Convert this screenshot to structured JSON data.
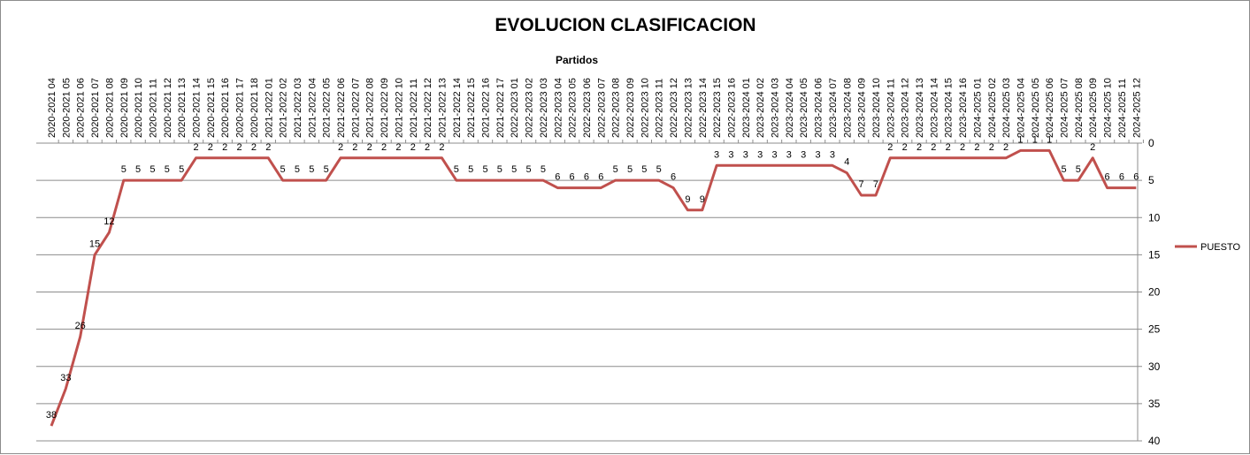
{
  "chart_data": {
    "type": "line",
    "title": "EVOLUCION CLASIFICACION",
    "xlabel": "Partidos",
    "ylabel": "",
    "ylim": [
      0,
      40
    ],
    "y_reversed": true,
    "y_ticks": [
      0,
      5,
      10,
      15,
      20,
      25,
      30,
      35,
      40
    ],
    "y_axis_position": "right",
    "x_axis_position": "top",
    "grid": true,
    "legend": "right",
    "line_color": "#c0504d",
    "categories": [
      "2020-2021 04",
      "2020-2021 05",
      "2020-2021 06",
      "2020-2021 07",
      "2020-2021 08",
      "2020-2021 09",
      "2020-2021 10",
      "2020-2021 11",
      "2020-2021 12",
      "2020-2021 13",
      "2020-2021 14",
      "2020-2021 15",
      "2020-2021 16",
      "2020-2021 17",
      "2020-2021 18",
      "2021-2022 01",
      "2021-2022 02",
      "2021-2022 03",
      "2021-2022 04",
      "2021-2022 05",
      "2021-2022 06",
      "2021-2022 07",
      "2021-2022 08",
      "2021-2022 09",
      "2021-2022 10",
      "2021-2022 11",
      "2021-2022 12",
      "2021-2022 13",
      "2021-2022 14",
      "2021-2022 15",
      "2021-2022 16",
      "2021-2022 17",
      "2022-2023 01",
      "2022-2023 02",
      "2022-2023 03",
      "2022-2023 04",
      "2022-2023 05",
      "2022-2023 06",
      "2022-2023 07",
      "2022-2023 08",
      "2022-2023 09",
      "2022-2023 10",
      "2022-2023 11",
      "2022-2023 12",
      "2022-2023 13",
      "2022-2023 14",
      "2022-2023 15",
      "2022-2023 16",
      "2023-2024 01",
      "2023-2024 02",
      "2023-2024 03",
      "2023-2024 04",
      "2023-2024 05",
      "2023-2024 06",
      "2023-2024 07",
      "2023-2024 08",
      "2023-2024 09",
      "2023-2024 10",
      "2023-2024 11",
      "2023-2024 12",
      "2023-2024 13",
      "2023-2024 14",
      "2023-2024 15",
      "2023-2024 16",
      "2024-2025 01",
      "2024-2025 02",
      "2024-2025 03",
      "2024-2025 04",
      "2024-2025 05",
      "2024-2025 06",
      "2024-2025 07",
      "2024-2025 08",
      "2024-2025 09",
      "2024-2025 10",
      "2024-2025 11",
      "2024-2025 12"
    ],
    "series": [
      {
        "name": "PUESTO",
        "values": [
          38,
          33,
          26,
          15,
          12,
          5,
          5,
          5,
          5,
          5,
          2,
          2,
          2,
          2,
          2,
          2,
          5,
          5,
          5,
          5,
          2,
          2,
          2,
          2,
          2,
          2,
          2,
          2,
          5,
          5,
          5,
          5,
          5,
          5,
          5,
          6,
          6,
          6,
          6,
          5,
          5,
          5,
          5,
          6,
          9,
          9,
          3,
          3,
          3,
          3,
          3,
          3,
          3,
          3,
          3,
          4,
          7,
          7,
          2,
          2,
          2,
          2,
          2,
          2,
          2,
          2,
          2,
          1,
          1,
          1,
          5,
          5,
          2,
          6,
          6,
          6
        ]
      }
    ]
  }
}
